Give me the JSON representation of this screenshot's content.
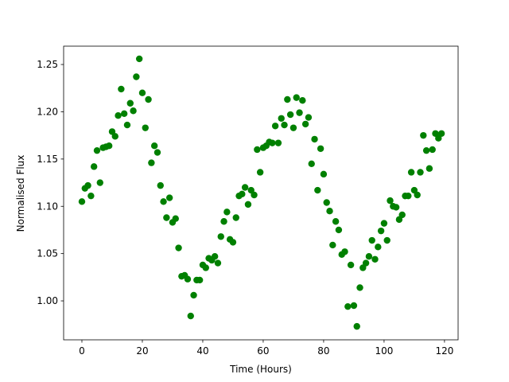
{
  "chart_data": {
    "type": "scatter",
    "x_label": "Time (Hours)",
    "y_label": "Normalised Flux",
    "xlim": [
      -6.05,
      124.5
    ],
    "ylim": [
      0.9588,
      1.2694
    ],
    "xticks": [
      0,
      20,
      40,
      60,
      80,
      100,
      120
    ],
    "yticks": [
      {
        "value": 1,
        "label": "1.00"
      },
      1.05,
      {
        "value": 1.1,
        "label": "1.10"
      },
      1.15,
      {
        "value": 1.2,
        "label": "1.20"
      },
      1.25
    ],
    "grid": false,
    "series": [
      {
        "color": "#008000",
        "x": [
          0,
          1,
          2,
          3,
          4,
          5,
          6,
          7,
          8,
          9,
          10,
          11,
          12,
          13,
          14,
          15,
          16,
          17,
          18,
          19,
          20,
          21,
          22,
          23,
          24,
          25,
          26,
          27,
          28,
          29,
          30,
          31,
          32,
          33,
          34,
          35,
          36,
          37,
          38,
          39,
          40,
          41,
          42,
          43,
          44,
          45,
          46,
          47,
          48,
          49,
          50,
          51,
          52,
          53,
          54,
          55,
          56,
          57,
          58,
          59,
          60,
          61,
          62,
          63,
          64,
          65,
          66,
          67,
          68,
          69,
          70,
          71,
          72,
          73,
          74,
          75,
          76,
          77,
          78,
          79,
          80,
          81,
          82,
          83,
          84,
          85,
          86,
          87,
          88,
          89,
          90,
          91,
          92,
          93,
          94,
          95,
          96,
          97,
          98,
          99,
          100,
          101,
          102,
          103,
          104,
          105,
          106,
          107,
          108,
          109,
          110,
          111,
          112,
          113,
          114,
          115,
          116,
          117,
          118,
          119
        ],
        "values": [
          1.105,
          1.119,
          1.122,
          1.111,
          1.142,
          1.159,
          1.125,
          1.162,
          1.163,
          1.164,
          1.179,
          1.174,
          1.196,
          1.224,
          1.198,
          1.186,
          1.209,
          1.201,
          1.237,
          1.256,
          1.22,
          1.183,
          1.213,
          1.146,
          1.164,
          1.157,
          1.122,
          1.105,
          1.088,
          1.109,
          1.083,
          1.087,
          1.056,
          1.026,
          1.027,
          1.023,
          0.984,
          1.006,
          1.022,
          1.022,
          1.038,
          1.035,
          1.045,
          1.043,
          1.047,
          1.04,
          1.068,
          1.084,
          1.094,
          1.065,
          1.062,
          1.088,
          1.111,
          1.113,
          1.12,
          1.102,
          1.117,
          1.112,
          1.16,
          1.136,
          1.162,
          1.164,
          1.168,
          1.167,
          1.185,
          1.167,
          1.193,
          1.186,
          1.213,
          1.197,
          1.183,
          1.215,
          1.199,
          1.212,
          1.187,
          1.194,
          1.145,
          1.171,
          1.117,
          1.161,
          1.134,
          1.104,
          1.095,
          1.059,
          1.084,
          1.075,
          1.049,
          1.052,
          0.994,
          1.038,
          0.995,
          0.973,
          1.014,
          1.035,
          1.04,
          1.047,
          1.064,
          1.044,
          1.057,
          1.074,
          1.082,
          1.064,
          1.106,
          1.1,
          1.099,
          1.086,
          1.091,
          1.111,
          1.111,
          1.136,
          1.117,
          1.112,
          1.136,
          1.175,
          1.159,
          1.14,
          1.16,
          1.177,
          1.172,
          1.177
        ]
      }
    ]
  }
}
